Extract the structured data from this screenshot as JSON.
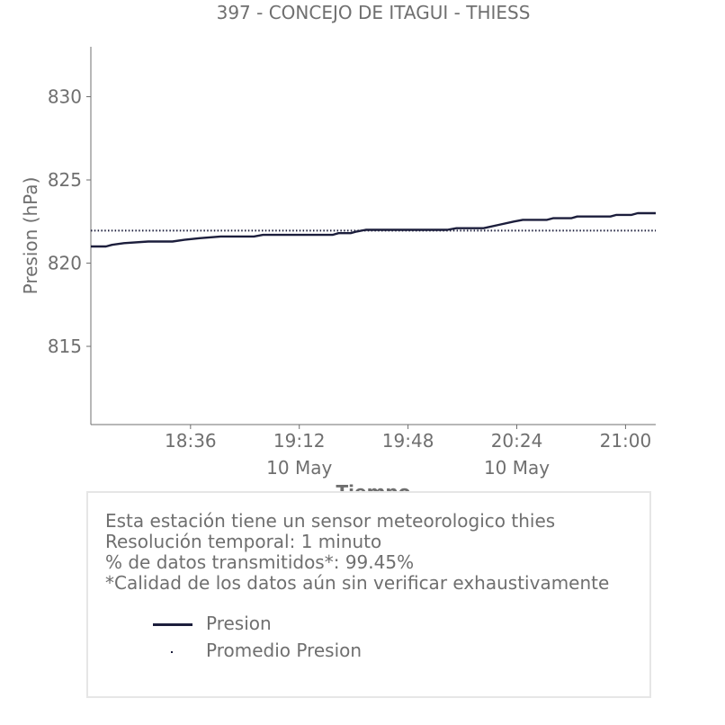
{
  "chart_data": {
    "type": "line",
    "title": "397 - CONCEJO DE ITAGUI - THIESS",
    "xlabel": "Tiempo",
    "ylabel": "Presion (hPa)",
    "x_range": [
      "18:03",
      "21:10"
    ],
    "ylim": [
      810.3,
      833.0
    ],
    "y_ticks": [
      815,
      820,
      825,
      830
    ],
    "x_ticks": [
      {
        "value": "18:36",
        "label": "18:36",
        "sublabel": ""
      },
      {
        "value": "19:12",
        "label": "19:12",
        "sublabel": "10 May"
      },
      {
        "value": "19:48",
        "label": "19:48",
        "sublabel": ""
      },
      {
        "value": "20:24",
        "label": "20:24",
        "sublabel": "10 May"
      },
      {
        "value": "21:00",
        "label": "21:00",
        "sublabel": ""
      }
    ],
    "grid": false,
    "series": [
      {
        "name": "Presion",
        "style": "solid",
        "color": "#1c1e3c",
        "points": [
          [
            "18:03",
            821.0
          ],
          [
            "18:08",
            821.0
          ],
          [
            "18:10",
            821.1
          ],
          [
            "18:14",
            821.2
          ],
          [
            "18:22",
            821.3
          ],
          [
            "18:30",
            821.3
          ],
          [
            "18:34",
            821.4
          ],
          [
            "18:39",
            821.5
          ],
          [
            "18:46",
            821.6
          ],
          [
            "18:57",
            821.6
          ],
          [
            "19:00",
            821.7
          ],
          [
            "19:23",
            821.7
          ],
          [
            "19:25",
            821.8
          ],
          [
            "19:29",
            821.8
          ],
          [
            "19:31",
            821.9
          ],
          [
            "19:34",
            822.0
          ],
          [
            "20:01",
            822.0
          ],
          [
            "20:04",
            822.1
          ],
          [
            "20:13",
            822.1
          ],
          [
            "20:18",
            822.3
          ],
          [
            "20:23",
            822.5
          ],
          [
            "20:26",
            822.6
          ],
          [
            "20:34",
            822.6
          ],
          [
            "20:36",
            822.7
          ],
          [
            "20:42",
            822.7
          ],
          [
            "20:44",
            822.8
          ],
          [
            "20:55",
            822.8
          ],
          [
            "20:57",
            822.9
          ],
          [
            "21:02",
            822.9
          ],
          [
            "21:04",
            823.0
          ],
          [
            "21:10",
            823.0
          ]
        ]
      },
      {
        "name": "Promedio Presion",
        "style": "dotted",
        "color": "#1c1e3c",
        "points": [
          [
            "18:03",
            821.95
          ],
          [
            "21:10",
            821.95
          ]
        ]
      }
    ]
  },
  "info": {
    "lines": [
      "Esta estación tiene un sensor meteorologico thies",
      "Resolución temporal: 1 minuto",
      "% de datos transmitidos*: 99.45%",
      "*Calidad de los datos aún sin verificar exhaustivamente"
    ]
  },
  "colors": {
    "text": "#6f6f6f",
    "axis": "#6f6f6f",
    "line": "#1c1e3c",
    "box_border": "#e6e6e6"
  }
}
